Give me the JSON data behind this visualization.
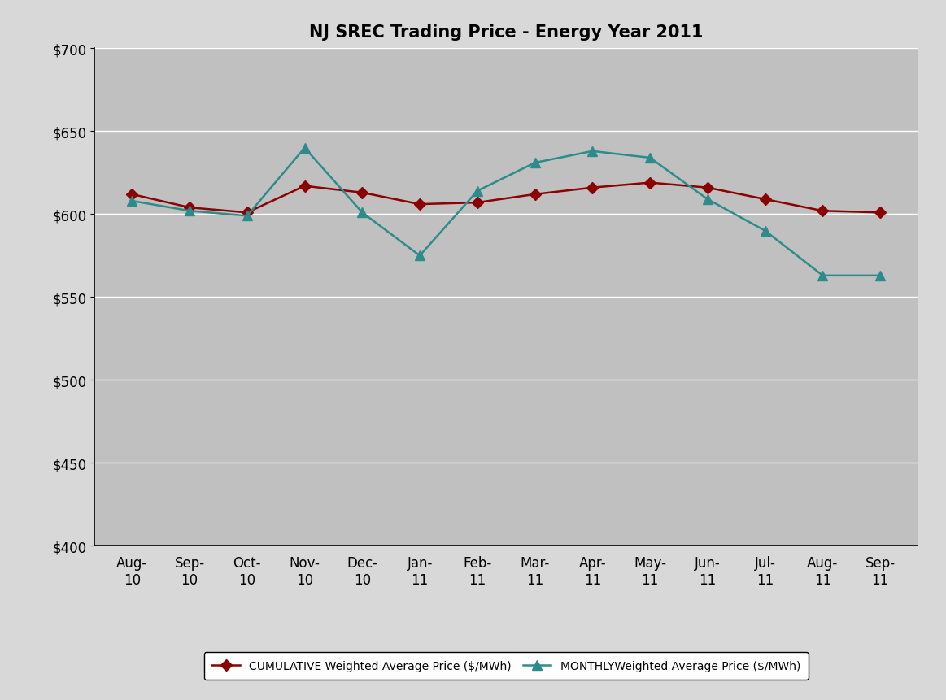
{
  "title": "NJ SREC Trading Price - Energy Year 2011",
  "categories": [
    "Aug-\n10",
    "Sep-\n10",
    "Oct-\n10",
    "Nov-\n10",
    "Dec-\n10",
    "Jan-\n11",
    "Feb-\n11",
    "Mar-\n11",
    "Apr-\n11",
    "May-\n11",
    "Jun-\n11",
    "Jul-\n11",
    "Aug-\n11",
    "Sep-\n11"
  ],
  "cumulative": [
    612,
    604,
    601,
    617,
    613,
    606,
    607,
    612,
    616,
    619,
    616,
    609,
    602,
    601
  ],
  "monthly": [
    608,
    602,
    599,
    640,
    601,
    575,
    614,
    631,
    638,
    634,
    609,
    590,
    563,
    563
  ],
  "ylim": [
    400,
    700
  ],
  "yticks": [
    400,
    450,
    500,
    550,
    600,
    650,
    700
  ],
  "cumulative_color": "#8B0000",
  "monthly_color": "#2E8B8B",
  "plot_bg_color": "#C0C0C0",
  "outer_bg_color": "#FFFFFF",
  "figure_bg_color": "#BEBEBE",
  "legend_cumulative": "CUMULATIVE Weighted Average Price ($/MWh)",
  "legend_monthly": "MONTHLYWeighted Average Price ($/MWh)",
  "title_fontsize": 15,
  "label_fontsize": 11,
  "legend_fontsize": 10,
  "tick_fontsize": 12
}
